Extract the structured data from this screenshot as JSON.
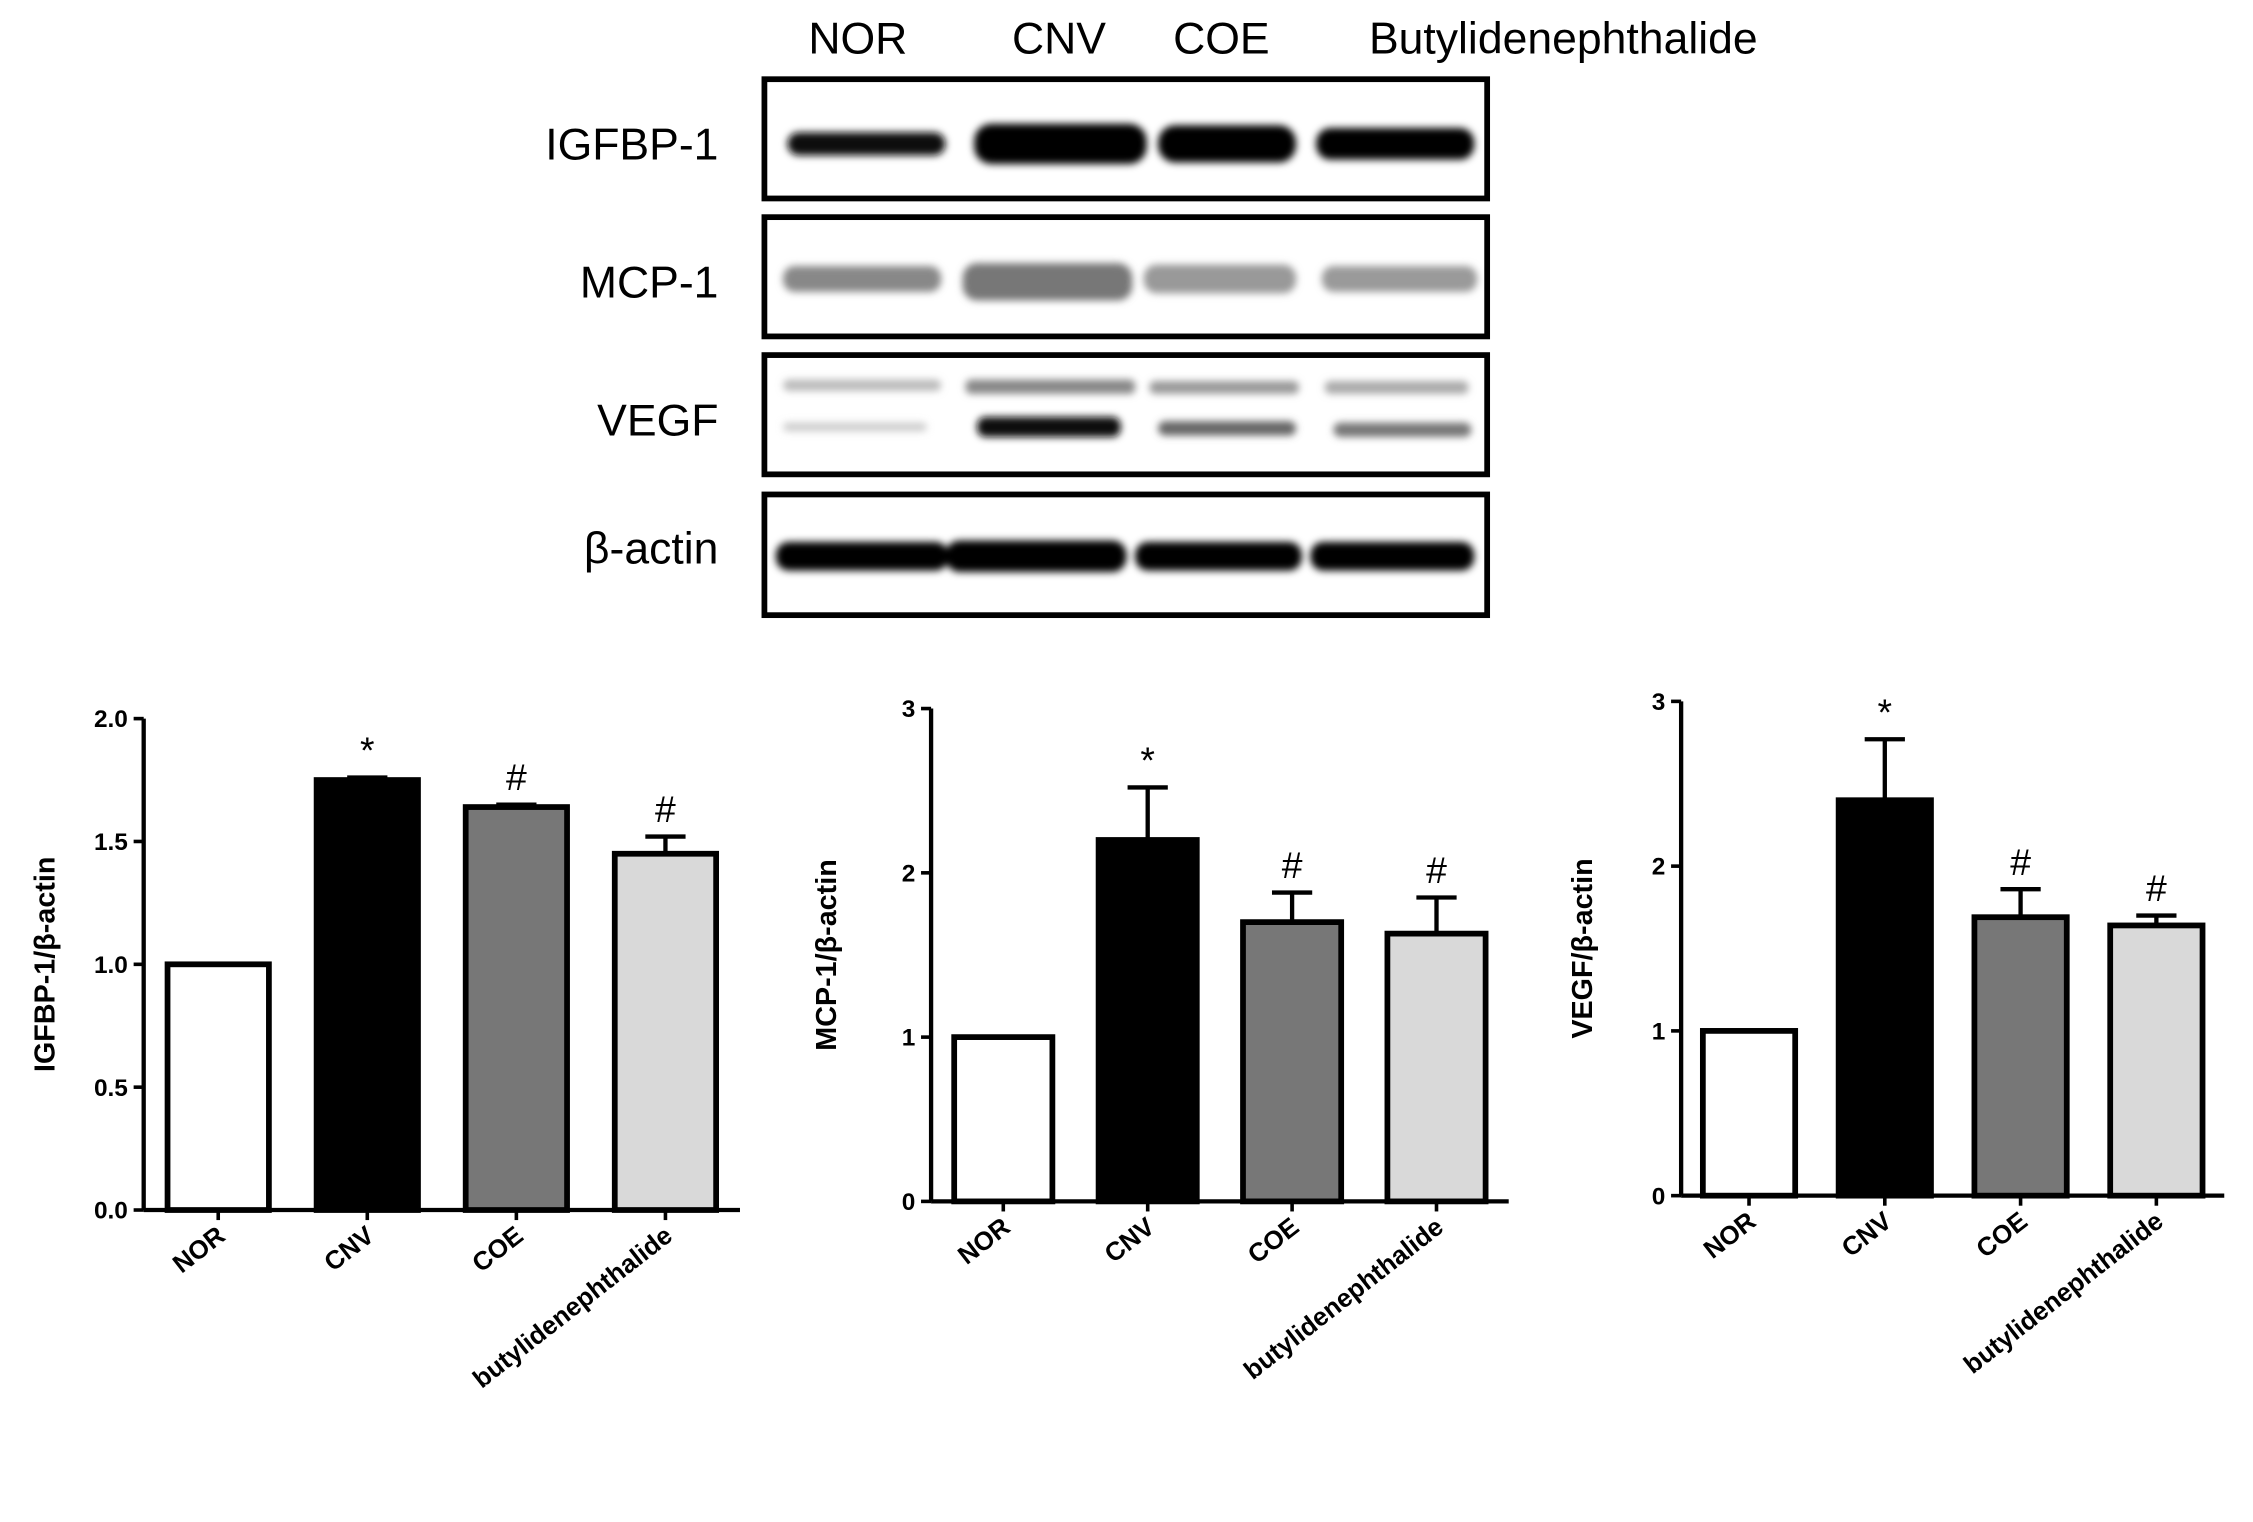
{
  "blot": {
    "lanes": [
      "NOR",
      "CNV",
      "COE",
      "Butylidenephthalide"
    ],
    "proteins": [
      "IGFBP-1",
      "MCP-1",
      "VEGF",
      "β-actin"
    ]
  },
  "chart_data": [
    {
      "type": "bar",
      "ylabel": "IGFBP-1/β-actin",
      "categories": [
        "NOR",
        "CNV",
        "COE",
        "butylidenephthalide"
      ],
      "values": [
        1.0,
        1.75,
        1.64,
        1.45
      ],
      "errors": [
        0,
        0.01,
        0.01,
        0.07
      ],
      "annotations": [
        null,
        "*",
        "#",
        "#"
      ],
      "colors": [
        "#ffffff",
        "#000000",
        "#777777",
        "#d9d9d9"
      ],
      "ylim": [
        0,
        2
      ],
      "yticks": [
        {
          "value": 0,
          "label": "0.0"
        },
        0.5,
        {
          "value": 1,
          "label": "1.0"
        },
        1.5,
        {
          "value": 2,
          "label": "2.0"
        }
      ]
    },
    {
      "type": "bar",
      "ylabel": "MCP-1/β-actin",
      "categories": [
        "NOR",
        "CNV",
        "COE",
        "butylidenephthalide"
      ],
      "values": [
        1.0,
        2.2,
        1.7,
        1.63
      ],
      "errors": [
        0,
        0.32,
        0.18,
        0.22
      ],
      "annotations": [
        null,
        "*",
        "#",
        "#"
      ],
      "colors": [
        "#ffffff",
        "#000000",
        "#777777",
        "#d9d9d9"
      ],
      "ylim": [
        0,
        3
      ],
      "yticks": [
        0,
        1,
        2,
        3
      ]
    },
    {
      "type": "bar",
      "ylabel": "VEGF/β-actin",
      "categories": [
        "NOR",
        "CNV",
        "COE",
        "butylidenephthalide"
      ],
      "values": [
        1.0,
        2.4,
        1.69,
        1.64
      ],
      "errors": [
        0,
        0.37,
        0.17,
        0.06
      ],
      "annotations": [
        null,
        "*",
        "#",
        "#"
      ],
      "colors": [
        "#ffffff",
        "#000000",
        "#777777",
        "#d9d9d9"
      ],
      "ylim": [
        0,
        3
      ],
      "yticks": [
        0,
        1,
        2,
        3
      ]
    }
  ]
}
